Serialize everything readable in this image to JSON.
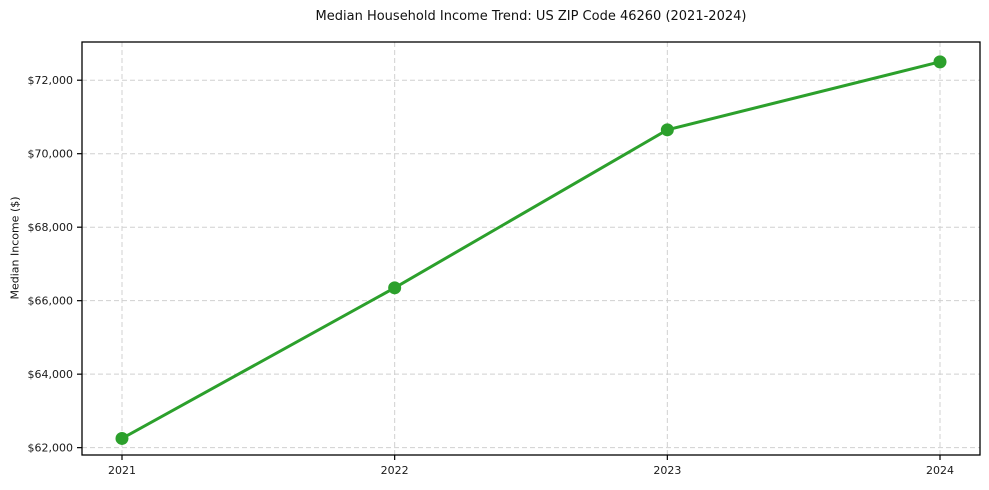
{
  "chart_data": {
    "type": "line",
    "title": "Median Household Income Trend: US ZIP Code 46260 (2021-2024)",
    "xlabel": "",
    "ylabel": "Median Income ($)",
    "categories": [
      "2021",
      "2022",
      "2023",
      "2024"
    ],
    "series": [
      {
        "name": "Median Income",
        "values": [
          62250,
          66350,
          70650,
          72500
        ]
      }
    ],
    "yticks": [
      62000,
      64000,
      66000,
      68000,
      70000,
      72000
    ],
    "ytick_labels": [
      "$62,000",
      "$64,000",
      "$66,000",
      "$68,000",
      "$70,000",
      "$72,000"
    ],
    "ylim": [
      61800,
      73040
    ],
    "grid": true,
    "grid_style": "dashed",
    "legend": "none",
    "line_color": "#2ca02c",
    "marker": "circle"
  }
}
